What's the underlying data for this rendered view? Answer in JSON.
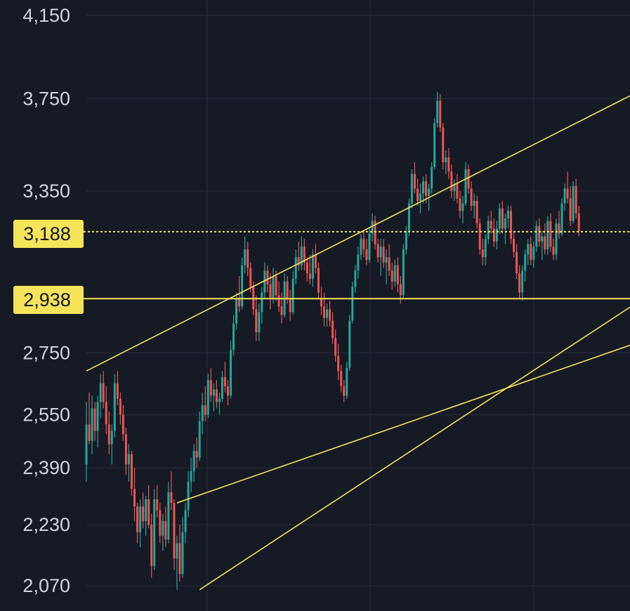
{
  "chart_data": {
    "type": "candlestick",
    "title": "",
    "colors": {
      "background": "#161a25",
      "grid": "#232733",
      "up": "#26a69a",
      "down": "#ef5350",
      "drawing": "#f5e35a",
      "badge": "#f5e35a",
      "tick_text": "#d1d4dc"
    },
    "y_axis": {
      "scale": "log",
      "side": "left",
      "ticks": [
        {
          "value": 4150,
          "label": "4,150"
        },
        {
          "value": 3750,
          "label": "3,750"
        },
        {
          "value": 3350,
          "label": "3,350"
        },
        {
          "value": 2750,
          "label": "2,750"
        },
        {
          "value": 2550,
          "label": "2,550"
        },
        {
          "value": 2390,
          "label": "2,390"
        },
        {
          "value": 2230,
          "label": "2,230"
        },
        {
          "value": 2070,
          "label": "2,070"
        }
      ]
    },
    "price_levels": [
      {
        "value": 3188,
        "label": "3,188",
        "style": "dashed"
      },
      {
        "value": 2938,
        "label": "2,938",
        "style": "solid"
      }
    ],
    "trendlines": [
      {
        "from": [
          0,
          2690
        ],
        "to": [
          244,
          4120
        ]
      },
      {
        "from": [
          40,
          2060
        ],
        "to": [
          296,
          3680
        ]
      },
      {
        "from": [
          32,
          2290
        ],
        "to": [
          254,
          2990
        ]
      }
    ],
    "ohlc": [
      [
        2400,
        2590,
        2350,
        2520
      ],
      [
        2520,
        2620,
        2460,
        2470
      ],
      [
        2470,
        2610,
        2430,
        2570
      ],
      [
        2570,
        2590,
        2470,
        2500
      ],
      [
        2500,
        2610,
        2450,
        2590
      ],
      [
        2590,
        2680,
        2540,
        2650
      ],
      [
        2650,
        2690,
        2570,
        2590
      ],
      [
        2590,
        2640,
        2490,
        2520
      ],
      [
        2520,
        2560,
        2430,
        2460
      ],
      [
        2460,
        2520,
        2400,
        2500
      ],
      [
        2500,
        2680,
        2480,
        2650
      ],
      [
        2650,
        2690,
        2580,
        2600
      ],
      [
        2600,
        2620,
        2520,
        2550
      ],
      [
        2550,
        2580,
        2470,
        2490
      ],
      [
        2490,
        2510,
        2370,
        2400
      ],
      [
        2400,
        2460,
        2350,
        2430
      ],
      [
        2430,
        2440,
        2310,
        2330
      ],
      [
        2330,
        2390,
        2240,
        2280
      ],
      [
        2280,
        2290,
        2180,
        2210
      ],
      [
        2210,
        2300,
        2170,
        2280
      ],
      [
        2280,
        2320,
        2220,
        2240
      ],
      [
        2240,
        2310,
        2200,
        2300
      ],
      [
        2300,
        2340,
        2220,
        2230
      ],
      [
        2230,
        2260,
        2090,
        2120
      ],
      [
        2120,
        2330,
        2110,
        2300
      ],
      [
        2300,
        2340,
        2250,
        2270
      ],
      [
        2270,
        2290,
        2180,
        2200
      ],
      [
        2200,
        2260,
        2160,
        2240
      ],
      [
        2240,
        2280,
        2170,
        2190
      ],
      [
        2190,
        2350,
        2180,
        2320
      ],
      [
        2320,
        2380,
        2270,
        2290
      ],
      [
        2290,
        2300,
        2110,
        2140
      ],
      [
        2140,
        2200,
        2060,
        2180
      ],
      [
        2180,
        2230,
        2080,
        2100
      ],
      [
        2100,
        2250,
        2090,
        2210
      ],
      [
        2210,
        2290,
        2180,
        2270
      ],
      [
        2270,
        2380,
        2250,
        2350
      ],
      [
        2350,
        2420,
        2320,
        2380
      ],
      [
        2380,
        2460,
        2350,
        2440
      ],
      [
        2440,
        2480,
        2390,
        2420
      ],
      [
        2420,
        2560,
        2410,
        2530
      ],
      [
        2530,
        2620,
        2490,
        2580
      ],
      [
        2580,
        2640,
        2530,
        2550
      ],
      [
        2550,
        2680,
        2540,
        2660
      ],
      [
        2660,
        2700,
        2590,
        2610
      ],
      [
        2610,
        2650,
        2560,
        2630
      ],
      [
        2630,
        2660,
        2570,
        2590
      ],
      [
        2590,
        2620,
        2550,
        2600
      ],
      [
        2600,
        2690,
        2590,
        2670
      ],
      [
        2670,
        2720,
        2620,
        2640
      ],
      [
        2640,
        2660,
        2580,
        2610
      ],
      [
        2610,
        2790,
        2600,
        2760
      ],
      [
        2760,
        2880,
        2740,
        2850
      ],
      [
        2850,
        2960,
        2830,
        2940
      ],
      [
        2940,
        3020,
        2890,
        2910
      ],
      [
        2910,
        3090,
        2900,
        3060
      ],
      [
        3060,
        3170,
        3030,
        3120
      ],
      [
        3120,
        3150,
        3020,
        3050
      ],
      [
        3050,
        3070,
        2960,
        2980
      ],
      [
        2980,
        3000,
        2880,
        2900
      ],
      [
        2900,
        2950,
        2790,
        2820
      ],
      [
        2820,
        2920,
        2790,
        2890
      ],
      [
        2890,
        2980,
        2850,
        2960
      ],
      [
        2960,
        3070,
        2940,
        3040
      ],
      [
        3040,
        3060,
        2960,
        2990
      ],
      [
        2990,
        3030,
        2900,
        2940
      ],
      [
        2940,
        3050,
        2920,
        3020
      ],
      [
        3020,
        3040,
        2930,
        2950
      ],
      [
        2950,
        3000,
        2890,
        2910
      ],
      [
        2910,
        2960,
        2850,
        2880
      ],
      [
        2880,
        3030,
        2870,
        3000
      ],
      [
        3000,
        3020,
        2920,
        2940
      ],
      [
        2940,
        2970,
        2860,
        2890
      ],
      [
        2890,
        3040,
        2880,
        3010
      ],
      [
        3010,
        3120,
        2990,
        3090
      ],
      [
        3090,
        3150,
        3040,
        3060
      ],
      [
        3060,
        3170,
        3040,
        3130
      ],
      [
        3130,
        3160,
        3040,
        3070
      ],
      [
        3070,
        3090,
        3000,
        3030
      ],
      [
        3030,
        3100,
        2990,
        3010
      ],
      [
        3010,
        3120,
        2980,
        3100
      ],
      [
        3100,
        3140,
        3030,
        3050
      ],
      [
        3050,
        3070,
        2940,
        2960
      ],
      [
        2940,
        2980,
        2880,
        2910
      ],
      [
        2910,
        2960,
        2840,
        2870
      ],
      [
        2870,
        2920,
        2840,
        2900
      ],
      [
        2900,
        2930,
        2840,
        2860
      ],
      [
        2860,
        2890,
        2780,
        2800
      ],
      [
        2800,
        2830,
        2720,
        2740
      ],
      [
        2740,
        2780,
        2660,
        2690
      ],
      [
        2690,
        2710,
        2620,
        2640
      ],
      [
        2640,
        2660,
        2590,
        2610
      ],
      [
        2610,
        2720,
        2600,
        2700
      ],
      [
        2700,
        2880,
        2690,
        2860
      ],
      [
        2860,
        3000,
        2850,
        2980
      ],
      [
        2980,
        3060,
        2960,
        3040
      ],
      [
        3040,
        3130,
        3010,
        3100
      ],
      [
        3100,
        3180,
        3080,
        3160
      ],
      [
        3160,
        3190,
        3090,
        3120
      ],
      [
        3120,
        3160,
        3060,
        3080
      ],
      [
        3080,
        3200,
        3070,
        3180
      ],
      [
        3180,
        3260,
        3150,
        3230
      ],
      [
        3230,
        3250,
        3120,
        3140
      ],
      [
        3140,
        3160,
        3070,
        3090
      ],
      [
        3090,
        3160,
        3020,
        3130
      ],
      [
        3130,
        3160,
        3050,
        3070
      ],
      [
        3070,
        3120,
        2990,
        3090
      ],
      [
        3090,
        3140,
        3020,
        3040
      ],
      [
        3040,
        3070,
        2970,
        3000
      ],
      [
        3000,
        3080,
        2980,
        3060
      ],
      [
        3060,
        3090,
        2960,
        2990
      ],
      [
        2990,
        3020,
        2920,
        2950
      ],
      [
        2950,
        3140,
        2940,
        3120
      ],
      [
        3120,
        3210,
        3100,
        3190
      ],
      [
        3190,
        3320,
        3170,
        3300
      ],
      [
        3300,
        3440,
        3280,
        3420
      ],
      [
        3420,
        3470,
        3340,
        3360
      ],
      [
        3360,
        3400,
        3290,
        3310
      ],
      [
        3310,
        3380,
        3260,
        3340
      ],
      [
        3340,
        3410,
        3300,
        3390
      ],
      [
        3390,
        3420,
        3300,
        3330
      ],
      [
        3330,
        3380,
        3270,
        3360
      ],
      [
        3360,
        3470,
        3340,
        3450
      ],
      [
        3450,
        3660,
        3440,
        3640
      ],
      [
        3640,
        3780,
        3620,
        3740
      ],
      [
        3740,
        3770,
        3600,
        3620
      ],
      [
        3620,
        3640,
        3440,
        3470
      ],
      [
        3470,
        3520,
        3420,
        3490
      ],
      [
        3490,
        3530,
        3400,
        3430
      ],
      [
        3430,
        3460,
        3320,
        3350
      ],
      [
        3350,
        3400,
        3310,
        3380
      ],
      [
        3380,
        3420,
        3300,
        3320
      ],
      [
        3320,
        3350,
        3240,
        3270
      ],
      [
        3270,
        3330,
        3220,
        3300
      ],
      [
        3300,
        3470,
        3290,
        3440
      ],
      [
        3440,
        3460,
        3340,
        3360
      ],
      [
        3360,
        3390,
        3270,
        3290
      ],
      [
        3290,
        3340,
        3240,
        3310
      ],
      [
        3310,
        3330,
        3200,
        3220
      ],
      [
        3220,
        3240,
        3100,
        3120
      ],
      [
        3120,
        3160,
        3060,
        3090
      ],
      [
        3090,
        3180,
        3060,
        3160
      ],
      [
        3160,
        3250,
        3140,
        3230
      ],
      [
        3230,
        3270,
        3180,
        3200
      ],
      [
        3200,
        3240,
        3130,
        3150
      ],
      [
        3150,
        3230,
        3120,
        3200
      ],
      [
        3200,
        3300,
        3180,
        3280
      ],
      [
        3280,
        3310,
        3180,
        3200
      ],
      [
        3200,
        3260,
        3140,
        3240
      ],
      [
        3240,
        3290,
        3200,
        3270
      ],
      [
        3270,
        3290,
        3140,
        3160
      ],
      [
        3160,
        3190,
        3090,
        3110
      ],
      [
        3110,
        3140,
        3010,
        3030
      ],
      [
        3030,
        3060,
        2940,
        2960
      ],
      [
        2960,
        3060,
        2930,
        3040
      ],
      [
        3040,
        3120,
        3000,
        3100
      ],
      [
        3100,
        3160,
        3060,
        3140
      ],
      [
        3140,
        3170,
        3060,
        3080
      ],
      [
        3080,
        3150,
        3050,
        3130
      ],
      [
        3130,
        3230,
        3110,
        3210
      ],
      [
        3210,
        3240,
        3130,
        3150
      ],
      [
        3150,
        3190,
        3080,
        3170
      ],
      [
        3170,
        3220,
        3100,
        3120
      ],
      [
        3120,
        3250,
        3100,
        3230
      ],
      [
        3230,
        3260,
        3110,
        3130
      ],
      [
        3130,
        3160,
        3080,
        3100
      ],
      [
        3100,
        3240,
        3080,
        3220
      ],
      [
        3220,
        3270,
        3160,
        3180
      ],
      [
        3180,
        3320,
        3170,
        3300
      ],
      [
        3300,
        3380,
        3270,
        3360
      ],
      [
        3360,
        3430,
        3300,
        3320
      ],
      [
        3320,
        3370,
        3210,
        3230
      ],
      [
        3230,
        3390,
        3220,
        3370
      ],
      [
        3370,
        3400,
        3240,
        3260
      ],
      [
        3260,
        3290,
        3170,
        3190
      ]
    ]
  },
  "levels_display": {
    "upper": "3,188",
    "lower": "2,938"
  }
}
